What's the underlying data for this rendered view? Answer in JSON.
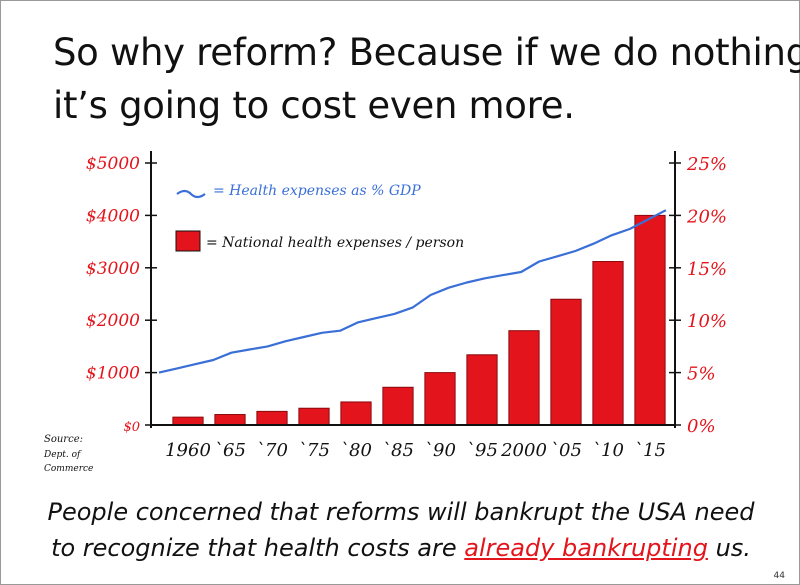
{
  "slide": {
    "title_line1": "So why reform? Because if we do nothing,",
    "title_line2": "it’s going to cost even more.",
    "caption_line1": "People concerned that reforms will bankrupt the USA need",
    "caption_line2_pre": "to recognize that health costs are ",
    "caption_line2_highlight": "already bankrupting",
    "caption_line2_post": " us.",
    "page_number": "44"
  },
  "source_note": [
    "Source:",
    "Dept. of",
    "Commerce"
  ],
  "colors": {
    "bars": "#e3141b",
    "line": "#3a6fd8",
    "left_axis_text": "#e3141b",
    "right_axis_text": "#e3141b",
    "axis": "#111111"
  },
  "chart_data": {
    "type": "bar",
    "categories": [
      "1960",
      "`65",
      "`70",
      "`75",
      "`80",
      "`85",
      "`90",
      "`95",
      "2000",
      "`05",
      "`10",
      "`15"
    ],
    "series": [
      {
        "name": "= National health expenses / person",
        "axis": "left",
        "type": "bar",
        "values": [
          150,
          200,
          260,
          320,
          440,
          720,
          1000,
          1340,
          1800,
          2400,
          3120,
          4000
        ]
      },
      {
        "name": "= Health expenses as % GDP",
        "axis": "right",
        "type": "line",
        "x": [
          1960,
          1962,
          1964,
          1966,
          1968,
          1970,
          1972,
          1974,
          1976,
          1978,
          1980,
          1982,
          1984,
          1986,
          1988,
          1990,
          1992,
          1994,
          1996,
          1998,
          2000,
          2002,
          2004,
          2006,
          2008,
          2010,
          2012,
          2014,
          2016
        ],
        "values": [
          5.0,
          5.4,
          5.8,
          6.2,
          6.9,
          7.2,
          7.5,
          8.0,
          8.4,
          8.8,
          9.0,
          9.8,
          10.2,
          10.6,
          11.2,
          12.4,
          13.1,
          13.6,
          14.0,
          14.3,
          14.6,
          15.6,
          16.1,
          16.6,
          17.3,
          18.1,
          18.7,
          19.6,
          20.5
        ]
      }
    ],
    "left_axis": {
      "ticks": [
        "$0",
        "$1000",
        "$2000",
        "$3000",
        "$4000",
        "$5000"
      ],
      "range": [
        0,
        5000
      ]
    },
    "right_axis": {
      "ticks": [
        "0%",
        "5%",
        "10%",
        "15%",
        "20%",
        "25%"
      ],
      "range": [
        0,
        25
      ]
    },
    "xlim": [
      1960,
      2017
    ]
  }
}
